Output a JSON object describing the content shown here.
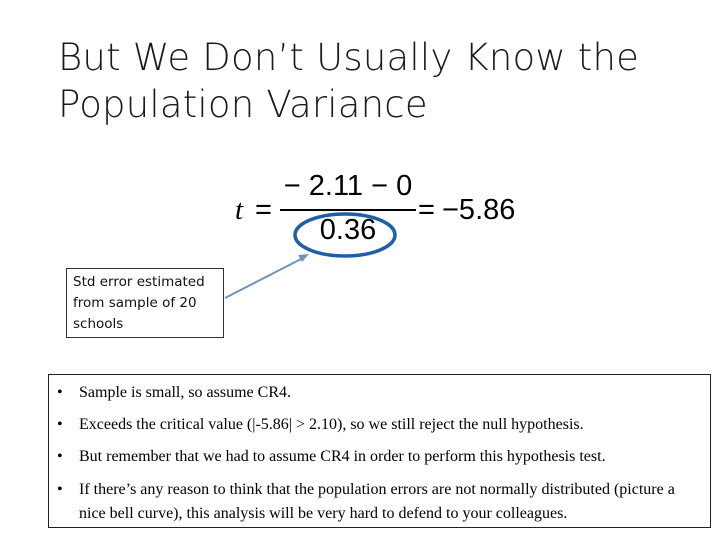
{
  "slide": {
    "title_line1": "But We Don’t Usually Know the",
    "title_line2": "Population Variance"
  },
  "formula": {
    "variable": "t",
    "equals": "=",
    "numerator": "− 2.11 − 0",
    "denominator": "0.36",
    "result": "−5.86"
  },
  "callout": {
    "text": "Std error  estimated from sample of 20 schools"
  },
  "bullets": [
    "Sample is small, so assume CR4.",
    "Exceeds the critical value (|-5.86| > 2.10), so we still reject the null hypothesis.",
    "But remember that we had to assume CR4 in order to perform this hypothesis test.",
    "If there’s any reason to think that the population errors are not normally distributed (picture a nice bell curve), this analysis will be very hard to defend to your colleagues."
  ],
  "colors": {
    "highlight_circle": "#1f5fa8",
    "arrow": "#6f93bd"
  }
}
